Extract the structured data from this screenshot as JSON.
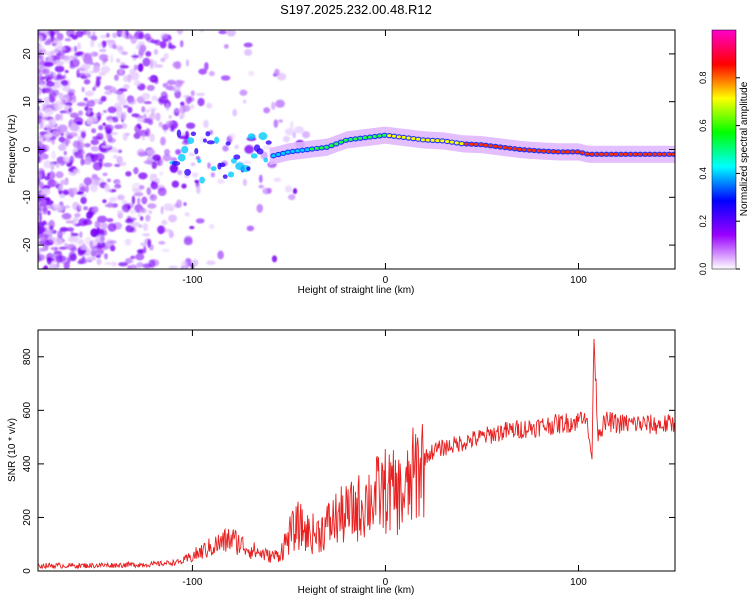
{
  "title": "S197.2025.232.00.48.R12",
  "chart_data": [
    {
      "type": "heatmap",
      "title": "S197.2025.232.00.48.R12",
      "xlabel": "Height of straight line (km)",
      "ylabel": "Frequency (Hz)",
      "xlim": [
        -180,
        150
      ],
      "ylim": [
        -25,
        25
      ],
      "x_ticks": [
        -100,
        0,
        100
      ],
      "y_ticks": [
        -20,
        -10,
        0,
        10,
        20
      ],
      "x_tick_labels": [
        "-100",
        "0",
        "100"
      ],
      "y_tick_labels": [
        "-20",
        "-10",
        "0",
        "10",
        "20"
      ],
      "ridge": {
        "x": [
          -60,
          -50,
          -40,
          -30,
          -20,
          -10,
          0,
          10,
          20,
          30,
          40,
          50,
          60,
          70,
          80,
          90,
          100,
          105,
          110,
          120,
          130,
          140,
          150
        ],
        "y": [
          -1.5,
          -0.5,
          0,
          0.5,
          2,
          2.5,
          3,
          2.5,
          2,
          1.8,
          1.2,
          1,
          0.5,
          0,
          -0.3,
          -0.5,
          -0.5,
          -1,
          -1,
          -1,
          -1,
          -1,
          -1
        ]
      },
      "colorbar": {
        "label": "Normalized spectral amplitude",
        "range": [
          0,
          1
        ],
        "ticks": [
          0.0,
          0.2,
          0.4,
          0.6,
          0.8
        ],
        "tick_labels": [
          "0.0",
          "0.2",
          "0.4",
          "0.6",
          "0.8"
        ],
        "colors": [
          "#ffffff",
          "#9900ff",
          "#0000ff",
          "#00ffff",
          "#00ff00",
          "#ffff00",
          "#ff0000",
          "#ff00cc"
        ]
      }
    },
    {
      "type": "line",
      "xlabel": "Height of straight line (km)",
      "ylabel": "SNR (10 * v/v)",
      "xlim": [
        -180,
        150
      ],
      "ylim": [
        0,
        900
      ],
      "x_ticks": [
        -100,
        0,
        100
      ],
      "y_ticks": [
        0,
        200,
        400,
        600,
        800
      ],
      "x_tick_labels": [
        "-100",
        "0",
        "100"
      ],
      "y_tick_labels": [
        "0",
        "200",
        "400",
        "600",
        "800"
      ],
      "color": "#e82020",
      "series": [
        {
          "name": "SNR",
          "x": [
            -180,
            -160,
            -140,
            -120,
            -105,
            -100,
            -90,
            -80,
            -70,
            -60,
            -55,
            -50,
            -45,
            -40,
            -35,
            -30,
            -25,
            -20,
            -15,
            -10,
            -5,
            0,
            5,
            10,
            15,
            20,
            25,
            30,
            40,
            50,
            60,
            70,
            80,
            90,
            100,
            103,
            105,
            107,
            108,
            110,
            115,
            120,
            130,
            140,
            150
          ],
          "y": [
            20,
            20,
            22,
            25,
            35,
            55,
            90,
            120,
            80,
            55,
            60,
            130,
            170,
            140,
            140,
            170,
            200,
            210,
            230,
            260,
            280,
            300,
            290,
            280,
            360,
            420,
            450,
            460,
            480,
            500,
            520,
            530,
            540,
            550,
            560,
            600,
            520,
            420,
            880,
            520,
            560,
            550,
            550,
            545,
            550
          ]
        }
      ]
    }
  ]
}
